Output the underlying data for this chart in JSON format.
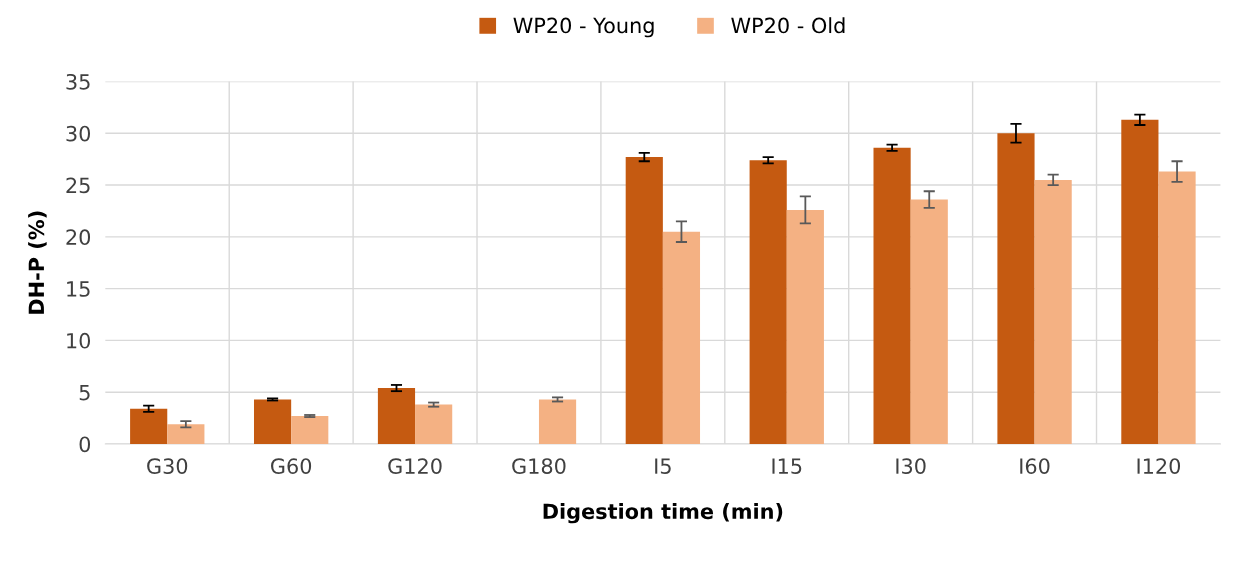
{
  "chart_data": {
    "type": "bar",
    "xlabel": "Digestion time (min)",
    "ylabel": "DH-P (%)",
    "categories": [
      "G30",
      "G60",
      "G120",
      "G180",
      "I5",
      "I15",
      "I30",
      "I60",
      "I120"
    ],
    "series": [
      {
        "name": "WP20 - Young",
        "color": "#c55a11",
        "values": [
          3.4,
          4.3,
          5.4,
          null,
          27.7,
          27.4,
          28.6,
          30.0,
          31.3
        ],
        "errors": [
          0.3,
          0.1,
          0.3,
          null,
          0.4,
          0.3,
          0.3,
          0.9,
          0.5
        ]
      },
      {
        "name": "WP20 - Old",
        "color": "#f4b183",
        "values": [
          1.9,
          2.7,
          3.8,
          4.3,
          20.5,
          22.6,
          23.6,
          25.5,
          26.3
        ],
        "errors": [
          0.3,
          0.1,
          0.2,
          0.2,
          1.0,
          1.3,
          0.8,
          0.5,
          1.0
        ]
      }
    ],
    "ylim": [
      0,
      35
    ],
    "yticks": [
      0,
      5,
      10,
      15,
      20,
      25,
      30,
      35
    ],
    "grid": true,
    "legend": "top"
  }
}
